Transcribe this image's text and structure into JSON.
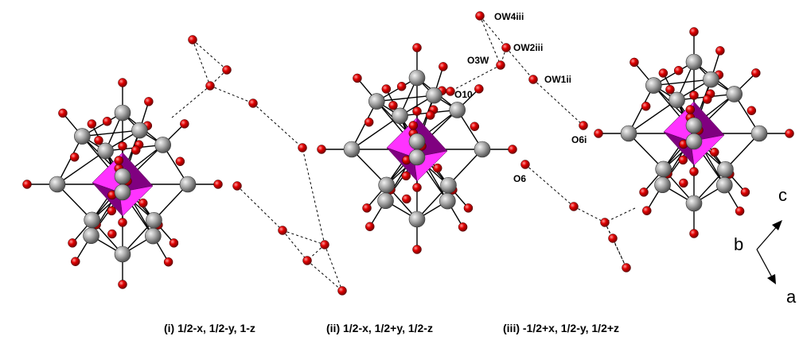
{
  "labels": {
    "ow4": "OW4iii",
    "ow2": "OW2iii",
    "o3w": "O3W",
    "ow1": "OW1ii",
    "o10": "O10",
    "o6i": "O6i",
    "o6": "O6"
  },
  "axes": {
    "c": "c",
    "b": "b",
    "a": "a"
  },
  "symmetry": {
    "i": "(i) 1/2-x, 1/2-y, 1-z",
    "ii": "(ii) 1/2-x, 1/2+y, 1/2-z",
    "iii": "(iii) -1/2+x, 1/2-y, 1/2+z"
  },
  "colors": {
    "oxygen": "#e00000",
    "metal": "#a0a0a0",
    "polyhedron_light": "#ff33ff",
    "polyhedron_dark": "#800080",
    "bond": "#000000"
  }
}
